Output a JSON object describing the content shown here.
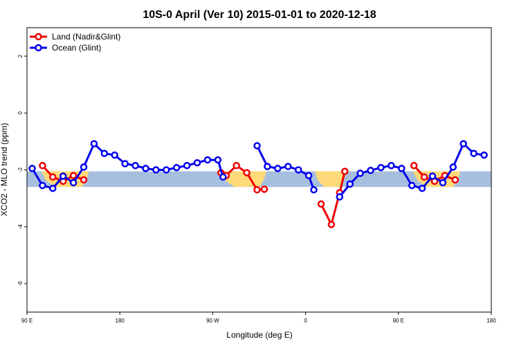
{
  "chart_data": {
    "type": "line",
    "title": "10S-0 April (Ver 10)   2015-01-01 to 2020-12-18",
    "xlabel": "Longitude (deg E)",
    "ylabel": "XCO2 - MLO trend (ppm)",
    "xlim": [
      90,
      540
    ],
    "ylim": [
      -7,
      3
    ],
    "x_ticks": [
      {
        "value": 90,
        "label": "90 E"
      },
      {
        "value": 180,
        "label": "180"
      },
      {
        "value": 270,
        "label": "90 W"
      },
      {
        "value": 360,
        "label": "0"
      },
      {
        "value": 450,
        "label": "90 E"
      },
      {
        "value": 540,
        "label": "180"
      }
    ],
    "y_ticks": [
      {
        "value": 2,
        "label": "2"
      },
      {
        "value": 0,
        "label": "0"
      },
      {
        "value": -2,
        "label": "-2"
      },
      {
        "value": -4,
        "label": "-4"
      },
      {
        "value": -6,
        "label": "-6"
      }
    ],
    "background_band": {
      "ymin": -2.6,
      "ymax": -2.05,
      "color": "#a7bfdf"
    },
    "land_spans": [
      {
        "x0": 104,
        "x1": 150
      },
      {
        "x0": 278,
        "x1": 322
      },
      {
        "x0": 369,
        "x1": 399
      },
      {
        "x0": 464,
        "x1": 510
      }
    ],
    "land_color": "#ffd97a",
    "series": [
      {
        "name": "Land (Nadir&Glint)",
        "color": "#ee0000",
        "segments": [
          [
            [
              105,
              -1.85
            ],
            [
              115,
              -2.25
            ],
            [
              125,
              -2.4
            ],
            [
              135,
              -2.2
            ],
            [
              145,
              -2.35
            ]
          ],
          [
            [
              278,
              -2.1
            ],
            [
              283,
              -2.2
            ],
            [
              293,
              -1.85
            ],
            [
              303,
              -2.1
            ],
            [
              313,
              -2.7
            ],
            [
              320,
              -2.68
            ]
          ],
          [
            [
              375,
              -3.2
            ],
            [
              385,
              -3.92
            ],
            [
              393,
              -2.8
            ],
            [
              398,
              -2.05
            ]
          ],
          [
            [
              465,
              -1.85
            ],
            [
              475,
              -2.25
            ],
            [
              485,
              -2.4
            ],
            [
              495,
              -2.2
            ],
            [
              505,
              -2.35
            ]
          ]
        ]
      },
      {
        "name": "Ocean (Glint)",
        "color": "#0000ee",
        "segments": [
          [
            [
              95,
              -1.95
            ],
            [
              105,
              -2.55
            ],
            [
              115,
              -2.65
            ],
            [
              125,
              -2.22
            ],
            [
              135,
              -2.45
            ],
            [
              145,
              -1.9
            ],
            [
              155,
              -1.08
            ],
            [
              165,
              -1.42
            ],
            [
              175,
              -1.48
            ],
            [
              185,
              -1.78
            ],
            [
              195,
              -1.85
            ],
            [
              205,
              -1.95
            ],
            [
              215,
              -2.0
            ],
            [
              225,
              -2.0
            ],
            [
              235,
              -1.92
            ],
            [
              245,
              -1.85
            ],
            [
              255,
              -1.75
            ],
            [
              265,
              -1.65
            ],
            [
              275,
              -1.65
            ],
            [
              280,
              -2.25
            ]
          ],
          [
            [
              313,
              -1.15
            ],
            [
              323,
              -1.88
            ],
            [
              333,
              -1.95
            ],
            [
              343,
              -1.88
            ],
            [
              353,
              -2.0
            ],
            [
              363,
              -2.2
            ],
            [
              368,
              -2.7
            ]
          ],
          [
            [
              393,
              -2.95
            ],
            [
              403,
              -2.5
            ],
            [
              413,
              -2.12
            ],
            [
              423,
              -2.02
            ],
            [
              433,
              -1.92
            ],
            [
              443,
              -1.85
            ],
            [
              453,
              -1.95
            ],
            [
              463,
              -2.55
            ],
            [
              473,
              -2.65
            ],
            [
              483,
              -2.22
            ],
            [
              493,
              -2.45
            ],
            [
              503,
              -1.9
            ],
            [
              513,
              -1.08
            ],
            [
              523,
              -1.42
            ],
            [
              533,
              -1.48
            ]
          ]
        ]
      }
    ]
  }
}
